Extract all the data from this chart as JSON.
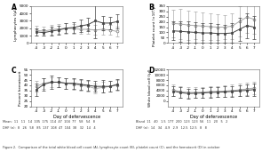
{
  "days": [
    -4,
    -3,
    -2,
    -1,
    0,
    1,
    2,
    3,
    4,
    5,
    6,
    7
  ],
  "panel_A": {
    "title": "A",
    "ylabel": "Lymphocytes (/μl)",
    "ylim": [
      0,
      5000
    ],
    "yticks": [
      0,
      1000,
      2000,
      3000,
      4000,
      5000
    ],
    "line1_mean": [
      1500,
      1400,
      1600,
      1750,
      2000,
      2100,
      2300,
      2500,
      3000,
      2700,
      2700,
      2900
    ],
    "line1_err": [
      500,
      450,
      550,
      600,
      650,
      750,
      850,
      950,
      2300,
      950,
      850,
      950
    ],
    "line2_mean": [
      1700,
      1600,
      1800,
      1900,
      2000,
      1950,
      1850,
      1850,
      1750,
      1850,
      1750,
      1550
    ],
    "line2_err": [
      650,
      550,
      650,
      650,
      750,
      650,
      650,
      650,
      650,
      750,
      650,
      650
    ]
  },
  "panel_B": {
    "title": "B",
    "ylabel": "Platelet count (×10³/μl)",
    "ylim": [
      0,
      350
    ],
    "yticks": [
      0,
      50,
      100,
      150,
      200,
      250,
      300,
      350
    ],
    "line1_mean": [
      115,
      110,
      105,
      100,
      95,
      95,
      90,
      90,
      95,
      130,
      165,
      150
    ],
    "line1_err": [
      90,
      95,
      100,
      100,
      95,
      95,
      90,
      85,
      95,
      110,
      120,
      110
    ],
    "line2_mean": [
      185,
      180,
      170,
      165,
      160,
      155,
      150,
      150,
      160,
      205,
      245,
      225
    ],
    "line2_err": [
      130,
      140,
      140,
      130,
      130,
      125,
      120,
      115,
      125,
      140,
      150,
      140
    ]
  },
  "panel_C": {
    "title": "C",
    "ylabel": "Percent hematocrit",
    "ylim": [
      20,
      55
    ],
    "yticks": [
      20,
      25,
      30,
      35,
      40,
      45,
      50,
      55
    ],
    "line1_mean": [
      36,
      41,
      43,
      43,
      42,
      42,
      41,
      40,
      39,
      39,
      39,
      41
    ],
    "line1_err": [
      6,
      6,
      6,
      5,
      5,
      5,
      5,
      5,
      5,
      6,
      5,
      5
    ],
    "line2_mean": [
      39,
      42,
      43,
      43,
      42,
      41,
      40,
      39,
      37,
      38,
      39,
      40
    ],
    "line2_err": [
      5,
      5,
      5,
      5,
      5,
      5,
      5,
      5,
      5,
      5,
      5,
      5
    ]
  },
  "panel_D": {
    "title": "D",
    "ylabel": "White blood cell (/μl)",
    "ylim": [
      -2000,
      12000
    ],
    "yticks": [
      0,
      2000,
      4000,
      6000,
      8000,
      10000,
      12000
    ],
    "line1_mean": [
      3800,
      3200,
      2900,
      3000,
      3100,
      3300,
      3400,
      3500,
      3700,
      3900,
      4100,
      4400
    ],
    "line1_err": [
      1800,
      2000,
      1800,
      1800,
      1900,
      1900,
      1900,
      2000,
      2100,
      2100,
      2200,
      2300
    ],
    "line2_mean": [
      4200,
      3600,
      3300,
      3300,
      3400,
      3600,
      3700,
      3800,
      4000,
      4300,
      4600,
      5000
    ],
    "line2_err": [
      2100,
      2200,
      2000,
      2000,
      2000,
      2100,
      2100,
      2100,
      2200,
      2300,
      2400,
      2500
    ]
  },
  "line1_style": {
    "color": "#444444",
    "marker": "s",
    "markersize": 2.0,
    "linewidth": 0.7,
    "markerfacecolor": "#444444"
  },
  "line2_style": {
    "color": "#aaaaaa",
    "marker": "o",
    "markersize": 2.0,
    "linewidth": 0.7,
    "markerfacecolor": "white"
  },
  "xlabel": "Day of defervescence",
  "bg_color": "#ffffff",
  "elinewidth": 0.5,
  "capsize": 1.2
}
